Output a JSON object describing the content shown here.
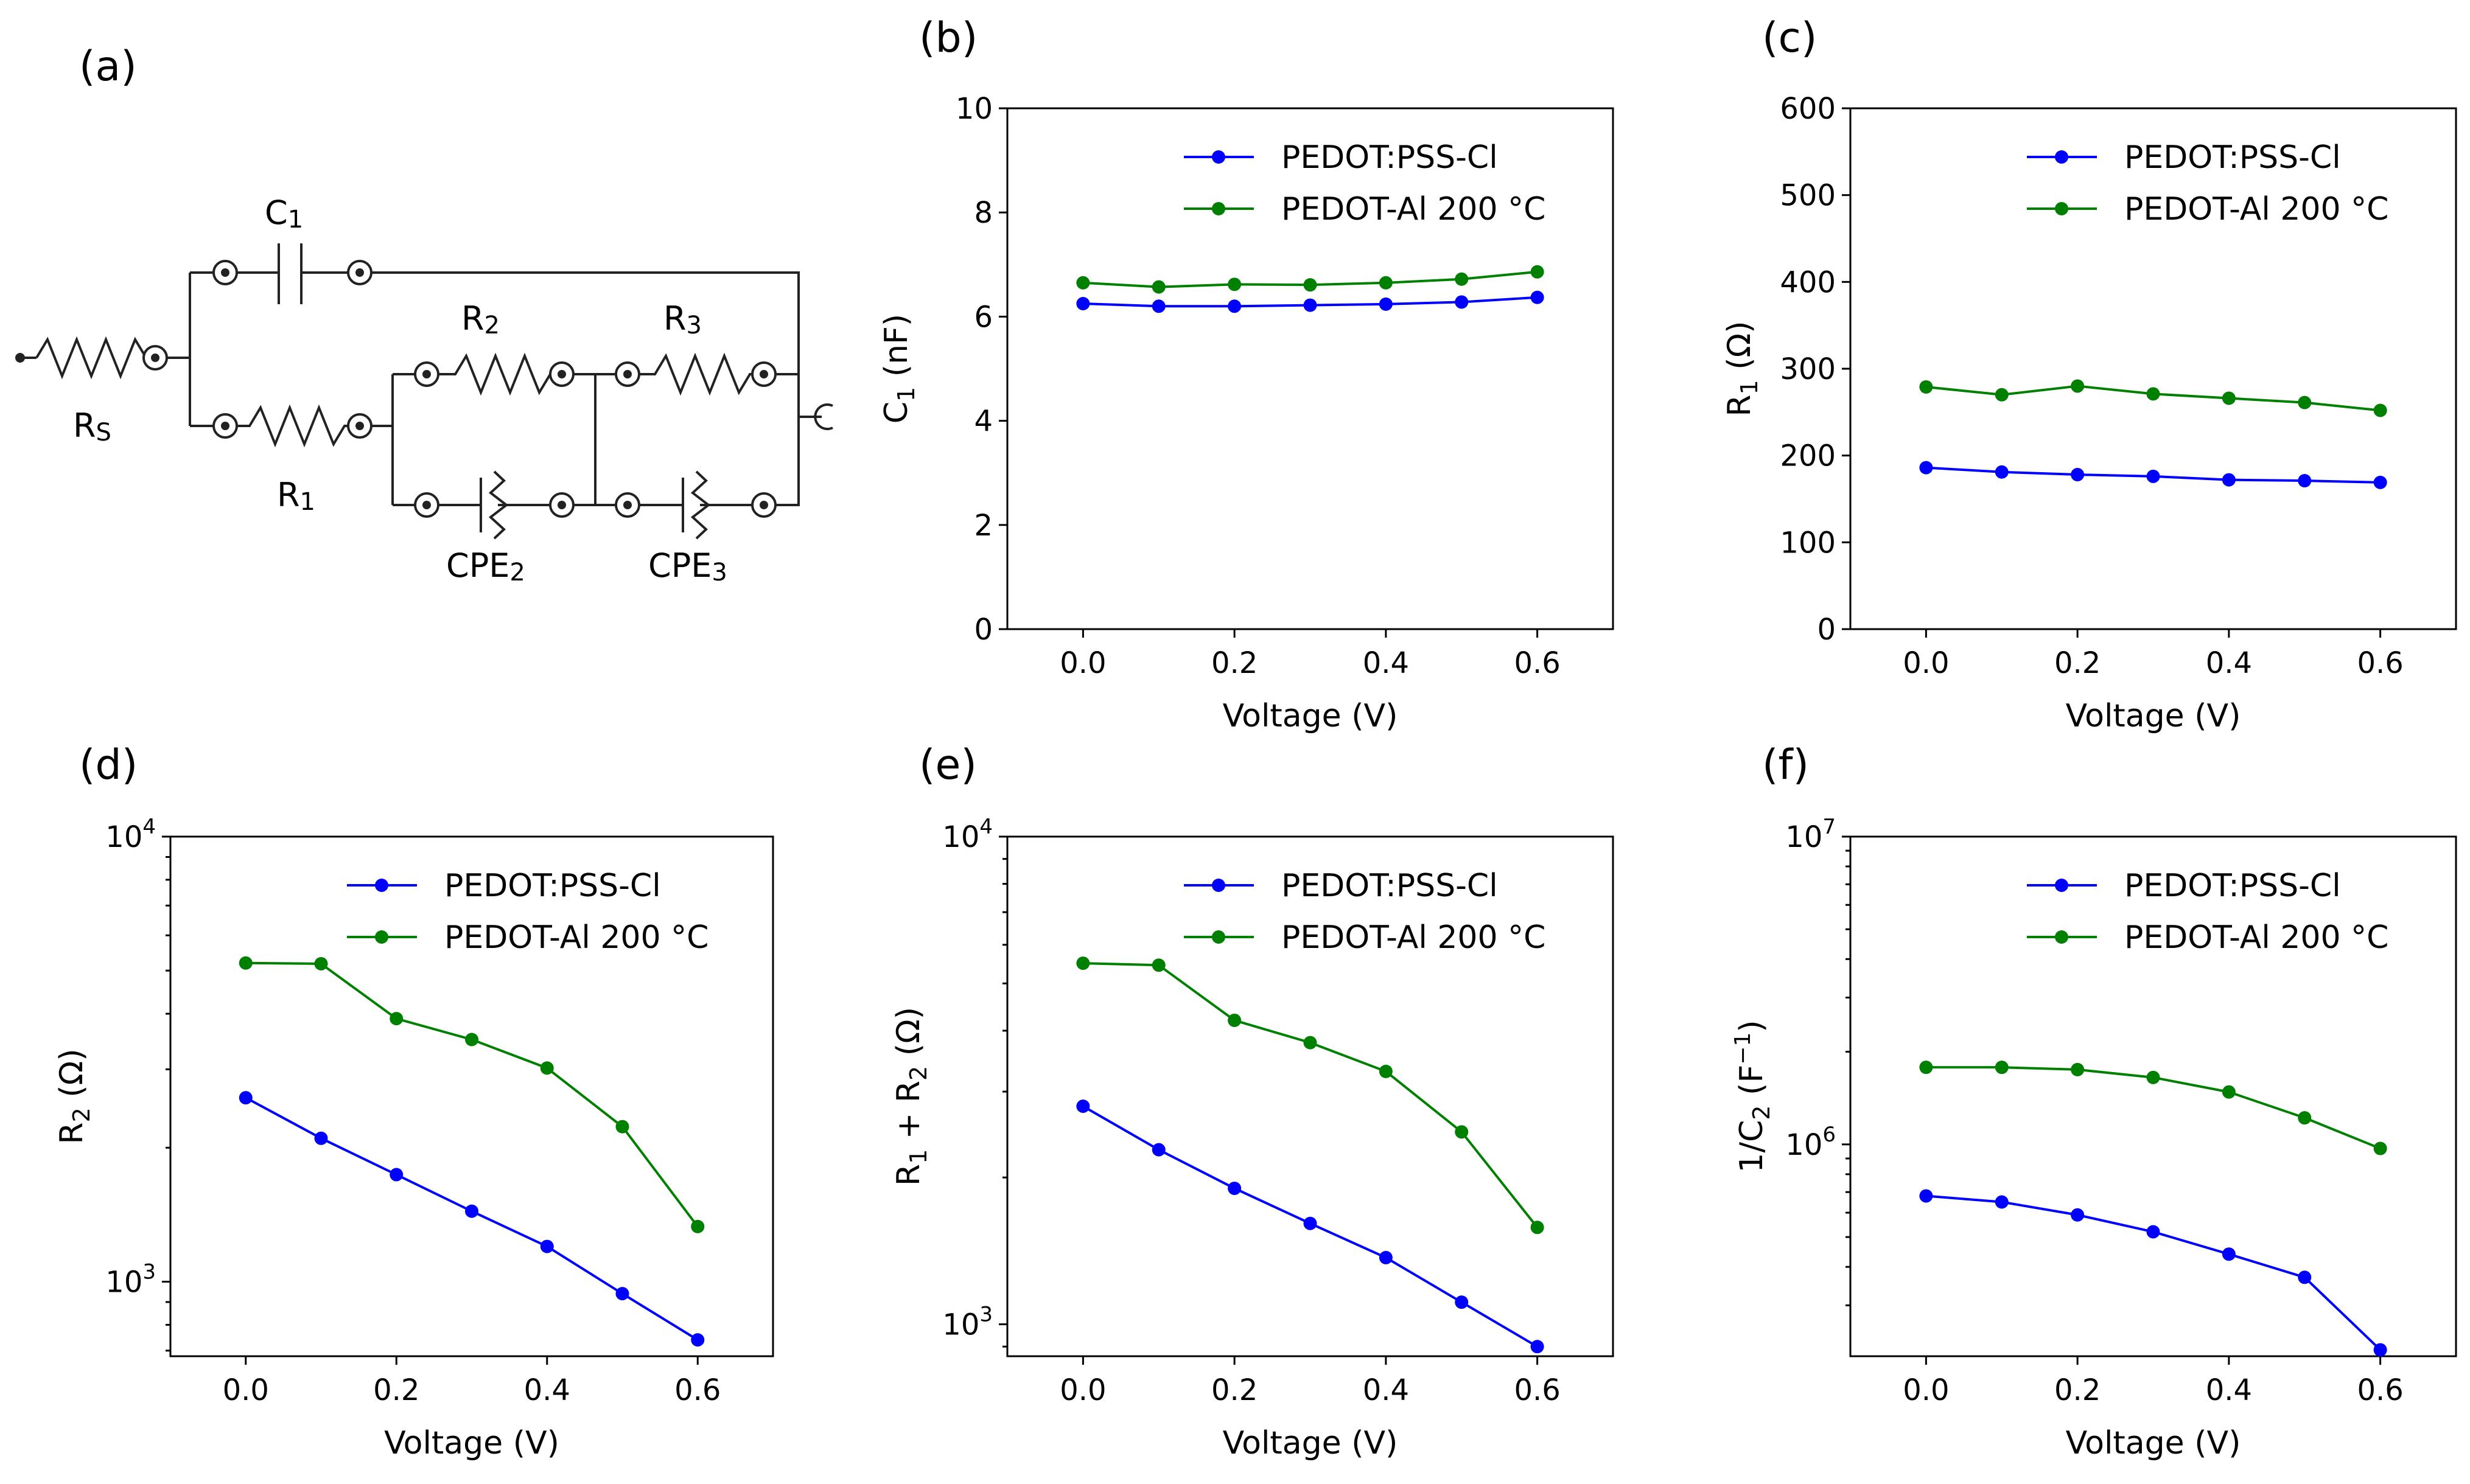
{
  "panel_labels": [
    "(a)",
    "(b)",
    "(c)",
    "(d)",
    "(e)",
    "(f)"
  ],
  "circuit": {
    "labels": {
      "rs": "R",
      "rs_sub": "S",
      "c1": "C",
      "c1_sub": "1",
      "r1": "R",
      "r1_sub": "1",
      "r2": "R",
      "r2_sub": "2",
      "r3": "R",
      "r3_sub": "3",
      "cpe2": "CPE",
      "cpe2_sub": "2",
      "cpe3": "CPE",
      "cpe3_sub": "3"
    }
  },
  "chart_data": [
    {
      "type": "line",
      "panel": "(b)",
      "x": [
        0.0,
        0.1,
        0.2,
        0.3,
        0.4,
        0.5,
        0.6
      ],
      "xlabel": "Voltage (V)",
      "ylabel": "C",
      "ylabel_sub": "1",
      "ylabel_tail": " (nF)",
      "xlim": [
        -0.1,
        0.7
      ],
      "ylim": [
        0,
        10
      ],
      "yscale": "linear",
      "xticks": [
        "0.0",
        "0.2",
        "0.4",
        "0.6"
      ],
      "yticks": [
        "0",
        "2",
        "4",
        "6",
        "8",
        "10"
      ],
      "legend_position": "upper-right",
      "series": [
        {
          "name": "PEDOT:PSS-Cl",
          "color": "#0000ff",
          "values": [
            6.25,
            6.2,
            6.2,
            6.22,
            6.24,
            6.28,
            6.37
          ]
        },
        {
          "name": "PEDOT-Al 200 °C",
          "color": "#008000",
          "values": [
            6.65,
            6.57,
            6.62,
            6.61,
            6.65,
            6.72,
            6.86
          ]
        }
      ]
    },
    {
      "type": "line",
      "panel": "(c)",
      "x": [
        0.0,
        0.1,
        0.2,
        0.3,
        0.4,
        0.5,
        0.6
      ],
      "xlabel": "Voltage (V)",
      "ylabel": "R",
      "ylabel_sub": "1",
      "ylabel_tail": " (Ω)",
      "xlim": [
        -0.1,
        0.7
      ],
      "ylim": [
        0,
        600
      ],
      "yscale": "linear",
      "xticks": [
        "0.0",
        "0.2",
        "0.4",
        "0.6"
      ],
      "yticks": [
        "0",
        "100",
        "200",
        "300",
        "400",
        "500",
        "600"
      ],
      "legend_position": "upper-right",
      "series": [
        {
          "name": "PEDOT:PSS-Cl",
          "color": "#0000ff",
          "values": [
            186,
            181,
            178,
            176,
            172,
            171,
            169
          ]
        },
        {
          "name": "PEDOT-Al 200 °C",
          "color": "#008000",
          "values": [
            279,
            270,
            280,
            271,
            266,
            261,
            252
          ]
        }
      ]
    },
    {
      "type": "line",
      "panel": "(d)",
      "x": [
        0.0,
        0.1,
        0.2,
        0.3,
        0.4,
        0.5,
        0.6
      ],
      "xlabel": "Voltage (V)",
      "ylabel": "R",
      "ylabel_sub": "2",
      "ylabel_tail": " (Ω)",
      "xlim": [
        -0.1,
        0.7
      ],
      "ylim": [
        680,
        10000
      ],
      "yscale": "log",
      "xticks": [
        "0.0",
        "0.2",
        "0.4",
        "0.6"
      ],
      "yticks_log": [
        {
          "value": 1000,
          "base": "10",
          "exp": "3"
        },
        {
          "value": 10000,
          "base": "10",
          "exp": "4"
        }
      ],
      "legend_position": "upper-right",
      "series": [
        {
          "name": "PEDOT:PSS-Cl",
          "color": "#0000ff",
          "values": [
            2590,
            2100,
            1740,
            1440,
            1200,
            940,
            740
          ]
        },
        {
          "name": "PEDOT-Al 200 °C",
          "color": "#008000",
          "values": [
            5200,
            5180,
            3900,
            3500,
            3020,
            2230,
            1330
          ]
        }
      ]
    },
    {
      "type": "line",
      "panel": "(e)",
      "x": [
        0.0,
        0.1,
        0.2,
        0.3,
        0.4,
        0.5,
        0.6
      ],
      "xlabel": "Voltage (V)",
      "ylabel": "R",
      "ylabel_sub": "1",
      "ylabel_mid": " + R",
      "ylabel_sub2": "2",
      "ylabel_tail": " (Ω)",
      "xlim": [
        -0.1,
        0.7
      ],
      "ylim": [
        860,
        10000
      ],
      "yscale": "log",
      "xticks": [
        "0.0",
        "0.2",
        "0.4",
        "0.6"
      ],
      "yticks_log": [
        {
          "value": 1000,
          "base": "10",
          "exp": "3"
        },
        {
          "value": 10000,
          "base": "10",
          "exp": "4"
        }
      ],
      "legend_position": "upper-right",
      "series": [
        {
          "name": "PEDOT:PSS-Cl",
          "color": "#0000ff",
          "values": [
            2800,
            2280,
            1900,
            1610,
            1370,
            1110,
            900
          ]
        },
        {
          "name": "PEDOT-Al 200 °C",
          "color": "#008000",
          "values": [
            5500,
            5450,
            4200,
            3780,
            3300,
            2480,
            1580
          ]
        }
      ]
    },
    {
      "type": "line",
      "panel": "(f)",
      "x": [
        0.0,
        0.1,
        0.2,
        0.3,
        0.4,
        0.5,
        0.6
      ],
      "xlabel": "Voltage (V)",
      "ylabel": "1/C",
      "ylabel_sub": "2",
      "ylabel_tail": " (F",
      "ylabel_sup": "−1",
      "ylabel_end": ")",
      "xlim": [
        -0.1,
        0.7
      ],
      "ylim": [
        205000,
        10000000
      ],
      "yscale": "log",
      "xticks": [
        "0.0",
        "0.2",
        "0.4",
        "0.6"
      ],
      "yticks_log": [
        {
          "value": 1000000,
          "base": "10",
          "exp": "6"
        },
        {
          "value": 10000000,
          "base": "10",
          "exp": "7"
        }
      ],
      "legend_position": "upper-right",
      "series": [
        {
          "name": "PEDOT:PSS-Cl",
          "color": "#0000ff",
          "values": [
            680000,
            650000,
            590000,
            520000,
            440000,
            370000,
            215000
          ]
        },
        {
          "name": "PEDOT-Al 200 °C",
          "color": "#008000",
          "values": [
            1780000,
            1780000,
            1750000,
            1650000,
            1480000,
            1220000,
            970000
          ]
        }
      ]
    }
  ]
}
